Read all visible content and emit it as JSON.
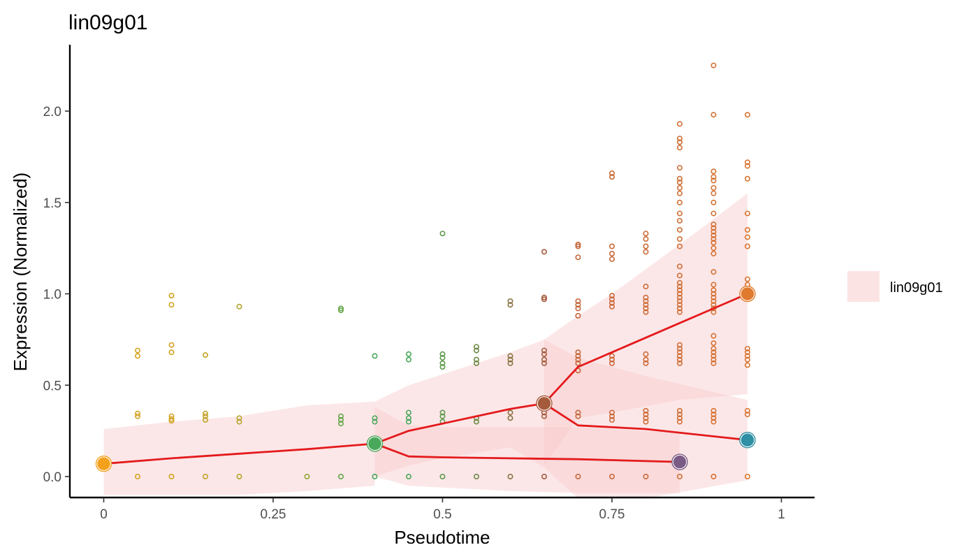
{
  "chart_data": {
    "type": "line",
    "title": "lin09g01",
    "xlabel": "Pseudotime",
    "ylabel": "Expression (Normalized)",
    "xlim": [
      -0.1,
      1.05
    ],
    "ylim": [
      -0.12,
      2.37
    ],
    "x_ticks": [
      0,
      0.25,
      0.5,
      0.75,
      1
    ],
    "x_tick_labels": [
      "0",
      "0.25",
      "0.5",
      "0.75",
      "1"
    ],
    "y_ticks": [
      0,
      0.5,
      1,
      1.5,
      2
    ],
    "y_tick_labels": [
      "0.0",
      "0.5",
      "1.0",
      "1.5",
      "2.0"
    ],
    "grid": false,
    "legend": {
      "position": "right",
      "entries": [
        "lin09g01"
      ]
    },
    "colors": {
      "line": "#e41a1c",
      "ribbon": "#f8c9cc",
      "axis": "#000000"
    },
    "trunk": {
      "x": [
        0,
        0.1,
        0.2,
        0.3,
        0.4
      ],
      "y": [
        0.07,
        0.1,
        0.125,
        0.15,
        0.18
      ],
      "lower": [
        -0.1,
        -0.1,
        -0.1,
        -0.08,
        -0.05
      ],
      "upper": [
        0.26,
        0.3,
        0.33,
        0.39,
        0.41
      ]
    },
    "series": [
      {
        "x": [
          0.4,
          0.45,
          0.5,
          0.55,
          0.6,
          0.65
        ],
        "y": [
          0.18,
          0.25,
          0.29,
          0.33,
          0.37,
          0.4
        ],
        "lower": [
          0.0,
          0.06,
          0.1,
          0.13,
          0.16,
          0.05
        ],
        "upper": [
          0.41,
          0.5,
          0.56,
          0.62,
          0.68,
          0.75
        ]
      },
      {
        "x": [
          0.4,
          0.45,
          0.5,
          0.6,
          0.7,
          0.85
        ],
        "y": [
          0.18,
          0.11,
          0.105,
          0.1,
          0.095,
          0.08
        ],
        "lower": [
          0.0,
          -0.05,
          -0.06,
          -0.08,
          -0.09,
          -0.09
        ],
        "upper": [
          0.38,
          0.28,
          0.27,
          0.27,
          0.27,
          0.24
        ]
      },
      {
        "x": [
          0.65,
          0.7,
          0.75,
          0.85,
          0.95
        ],
        "y": [
          0.4,
          0.6,
          0.68,
          0.84,
          1.0
        ],
        "lower": [
          0.06,
          0.32,
          0.35,
          0.42,
          0.45
        ],
        "upper": [
          0.75,
          0.88,
          1.0,
          1.27,
          1.55
        ]
      },
      {
        "x": [
          0.65,
          0.7,
          0.8,
          0.95
        ],
        "y": [
          0.4,
          0.28,
          0.26,
          0.2
        ],
        "lower": [
          0.05,
          -0.12,
          -0.12,
          -0.02
        ],
        "upper": [
          0.75,
          0.65,
          0.55,
          0.42
        ]
      }
    ],
    "nodes": [
      {
        "x": 0,
        "y": 0.07,
        "color": "#f5a01a"
      },
      {
        "x": 0.4,
        "y": 0.18,
        "color": "#4aa85a"
      },
      {
        "x": 0.65,
        "y": 0.4,
        "color": "#a65a3c"
      },
      {
        "x": 0.85,
        "y": 0.08,
        "color": "#7b5b85"
      },
      {
        "x": 0.95,
        "y": 0.2,
        "color": "#2f8fa4"
      },
      {
        "x": 0.95,
        "y": 1.0,
        "color": "#e07a2e"
      }
    ],
    "points": [
      {
        "x": 0.05,
        "color": "#d4a323",
        "y": [
          0,
          0.33,
          0.345,
          0.66,
          0.69
        ]
      },
      {
        "x": 0.1,
        "color": "#d4a323",
        "y": [
          0,
          0.305,
          0.315,
          0.33,
          0.68,
          0.72,
          0.94,
          0.99
        ]
      },
      {
        "x": 0.15,
        "color": "#c3a328",
        "y": [
          0,
          0.31,
          0.33,
          0.345,
          0.665
        ]
      },
      {
        "x": 0.2,
        "color": "#b5a52c",
        "y": [
          0,
          0.3,
          0.32,
          0.93
        ]
      },
      {
        "x": 0.3,
        "color": "#8ea83a",
        "y": [
          0
        ]
      },
      {
        "x": 0.35,
        "color": "#63a647",
        "y": [
          0,
          0.29,
          0.31,
          0.33,
          0.91,
          0.92
        ]
      },
      {
        "x": 0.4,
        "color": "#4aa85a",
        "y": [
          0,
          0.3,
          0.32,
          0.66
        ]
      },
      {
        "x": 0.45,
        "color": "#4aa85a",
        "y": [
          0,
          0.3,
          0.32,
          0.35,
          0.64,
          0.67
        ]
      },
      {
        "x": 0.5,
        "color": "#5d9a4c",
        "y": [
          0,
          0.3,
          0.33,
          0.35,
          0.6,
          0.62,
          0.65,
          0.67,
          1.33
        ]
      },
      {
        "x": 0.55,
        "color": "#6e8a46",
        "y": [
          0,
          0.3,
          0.32,
          0.62,
          0.64,
          0.69,
          0.71
        ]
      },
      {
        "x": 0.6,
        "color": "#8a7444",
        "y": [
          0,
          0.32,
          0.35,
          0.62,
          0.64,
          0.66,
          0.94,
          0.96
        ]
      },
      {
        "x": 0.65,
        "color": "#a65a3c",
        "y": [
          0,
          0.33,
          0.35,
          0.62,
          0.64,
          0.67,
          0.69,
          0.97,
          0.98,
          1.23
        ]
      },
      {
        "x": 0.7,
        "color": "#c4663a",
        "y": [
          0,
          0.33,
          0.35,
          0.58,
          0.62,
          0.64,
          0.66,
          0.68,
          0.88,
          0.92,
          0.94,
          0.96,
          1.2,
          1.26,
          1.27
        ]
      },
      {
        "x": 0.75,
        "color": "#c8693a",
        "y": [
          0,
          0.31,
          0.33,
          0.35,
          0.62,
          0.64,
          0.66,
          0.93,
          0.95,
          0.97,
          0.99,
          1.19,
          1.22,
          1.26,
          1.64,
          1.66
        ]
      },
      {
        "x": 0.8,
        "color": "#cc6c38",
        "y": [
          0,
          0.3,
          0.32,
          0.34,
          0.36,
          0.62,
          0.64,
          0.67,
          0.9,
          0.92,
          0.94,
          0.96,
          0.98,
          1.04,
          1.23,
          1.26,
          1.3,
          1.33
        ]
      },
      {
        "x": 0.85,
        "color": "#d06f36",
        "y": [
          0,
          0.3,
          0.32,
          0.34,
          0.36,
          0.62,
          0.64,
          0.66,
          0.68,
          0.7,
          0.72,
          0.9,
          0.92,
          0.94,
          0.96,
          0.98,
          1.0,
          1.02,
          1.04,
          1.06,
          1.1,
          1.15,
          1.26,
          1.3,
          1.35,
          1.4,
          1.44,
          1.5,
          1.55,
          1.58,
          1.61,
          1.63,
          1.69,
          1.8,
          1.83,
          1.85,
          1.93
        ]
      },
      {
        "x": 0.9,
        "color": "#d47234",
        "y": [
          0,
          0.3,
          0.32,
          0.34,
          0.36,
          0.62,
          0.64,
          0.66,
          0.68,
          0.7,
          0.73,
          0.77,
          0.9,
          0.92,
          0.94,
          0.96,
          0.98,
          1.0,
          1.02,
          1.05,
          1.12,
          1.22,
          1.25,
          1.28,
          1.3,
          1.32,
          1.34,
          1.36,
          1.38,
          1.44,
          1.5,
          1.55,
          1.58,
          1.62,
          1.64,
          1.67,
          1.98,
          2.25
        ]
      },
      {
        "x": 0.95,
        "color": "#d87532",
        "y": [
          0,
          0.34,
          0.36,
          0.61,
          0.64,
          0.66,
          0.68,
          0.7,
          1.05,
          1.08,
          1.26,
          1.31,
          1.35,
          1.44,
          1.63,
          1.7,
          1.72,
          1.98
        ]
      }
    ]
  }
}
